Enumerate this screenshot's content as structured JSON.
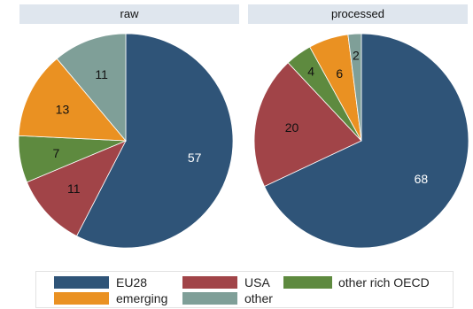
{
  "chart_data": [
    {
      "type": "pie",
      "title": "raw",
      "slices": [
        {
          "label": "EU28",
          "value": 57
        },
        {
          "label": "USA",
          "value": 11
        },
        {
          "label": "other rich OECD",
          "value": 7
        },
        {
          "label": "emerging",
          "value": 13
        },
        {
          "label": "other",
          "value": 11
        }
      ]
    },
    {
      "type": "pie",
      "title": "processed",
      "slices": [
        {
          "label": "EU28",
          "value": 68
        },
        {
          "label": "USA",
          "value": 20
        },
        {
          "label": "other rich OECD",
          "value": 4
        },
        {
          "label": "emerging",
          "value": 6
        },
        {
          "label": "other",
          "value": 2
        }
      ]
    }
  ],
  "legend": [
    {
      "label": "EU28",
      "color": "#2f5478"
    },
    {
      "label": "USA",
      "color": "#a14448"
    },
    {
      "label": "other rich OECD",
      "color": "#5e8a3f"
    },
    {
      "label": "emerging",
      "color": "#ea9122"
    },
    {
      "label": "other",
      "color": "#7f9f98"
    }
  ],
  "colors": {
    "EU28": "#2f5478",
    "USA": "#a14448",
    "other rich OECD": "#5e8a3f",
    "emerging": "#ea9122",
    "other": "#7f9f98"
  }
}
